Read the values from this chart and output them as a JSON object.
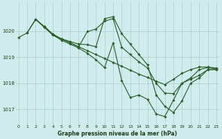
{
  "title": "Graphe pression niveau de la mer (hPa)",
  "bg_color": "#d0ecec",
  "grid_color": "#a8cccc",
  "line_color": "#2a5e2a",
  "xlim": [
    -0.3,
    23.3
  ],
  "ylim": [
    1016.4,
    1021.1
  ],
  "yticks": [
    1017,
    1018,
    1019,
    1020
  ],
  "xticks": [
    0,
    1,
    2,
    3,
    4,
    5,
    6,
    7,
    8,
    9,
    10,
    11,
    12,
    13,
    14,
    15,
    16,
    17,
    18,
    19,
    20,
    21,
    22,
    23
  ],
  "series": [
    {
      "x": [
        0,
        1,
        2,
        3,
        4,
        5,
        6,
        7,
        8,
        9,
        10,
        11,
        12,
        13,
        14,
        15,
        16,
        17,
        18,
        19,
        20,
        21,
        22,
        23
      ],
      "y": [
        1019.75,
        1019.93,
        1020.45,
        1020.15,
        1019.85,
        1019.7,
        1019.55,
        1019.4,
        1019.25,
        1019.1,
        1018.95,
        1018.8,
        1018.65,
        1018.5,
        1018.35,
        1018.22,
        1018.08,
        1017.95,
        1018.15,
        1018.38,
        1018.52,
        1018.62,
        1018.62,
        1018.58
      ]
    },
    {
      "x": [
        1,
        2,
        3,
        4,
        5,
        6,
        7,
        8,
        9,
        10,
        11,
        12,
        13,
        14,
        15,
        16,
        17,
        18,
        19,
        20,
        21,
        22,
        23
      ],
      "y": [
        1019.93,
        1020.45,
        1020.15,
        1019.85,
        1019.65,
        1019.5,
        1019.35,
        1019.15,
        1018.9,
        1018.6,
        1019.55,
        1018.1,
        1017.45,
        1017.55,
        1017.38,
        1016.82,
        1016.72,
        1017.35,
        1018.0,
        1018.2,
        1018.52,
        1018.6,
        1018.55
      ]
    },
    {
      "x": [
        2,
        3,
        4,
        5,
        6,
        7,
        8,
        9,
        10,
        11,
        12,
        13,
        14,
        15,
        16,
        17,
        18,
        19,
        20,
        21,
        22,
        23
      ],
      "y": [
        1020.45,
        1020.18,
        1019.88,
        1019.7,
        1019.55,
        1019.4,
        1019.98,
        1020.08,
        1020.38,
        1020.48,
        1019.38,
        1019.1,
        1018.82,
        1018.58,
        1018.0,
        1017.62,
        1017.6,
        1018.0,
        1018.15,
        1018.3,
        1018.52,
        1018.52
      ]
    },
    {
      "x": [
        3,
        4,
        5,
        6,
        7,
        8,
        9,
        10,
        11,
        12,
        13,
        14,
        15,
        16,
        17,
        18,
        19,
        20,
        21,
        22,
        23
      ],
      "y": [
        1020.18,
        1019.88,
        1019.7,
        1019.6,
        1019.5,
        1019.48,
        1019.4,
        1020.48,
        1020.55,
        1019.9,
        1019.5,
        1019.1,
        1018.7,
        1017.55,
        1017.12,
        1016.88,
        1017.32,
        1018.0,
        1018.2,
        1018.52,
        1018.52
      ]
    }
  ],
  "figwidth": 3.2,
  "figheight": 2.0,
  "dpi": 100
}
